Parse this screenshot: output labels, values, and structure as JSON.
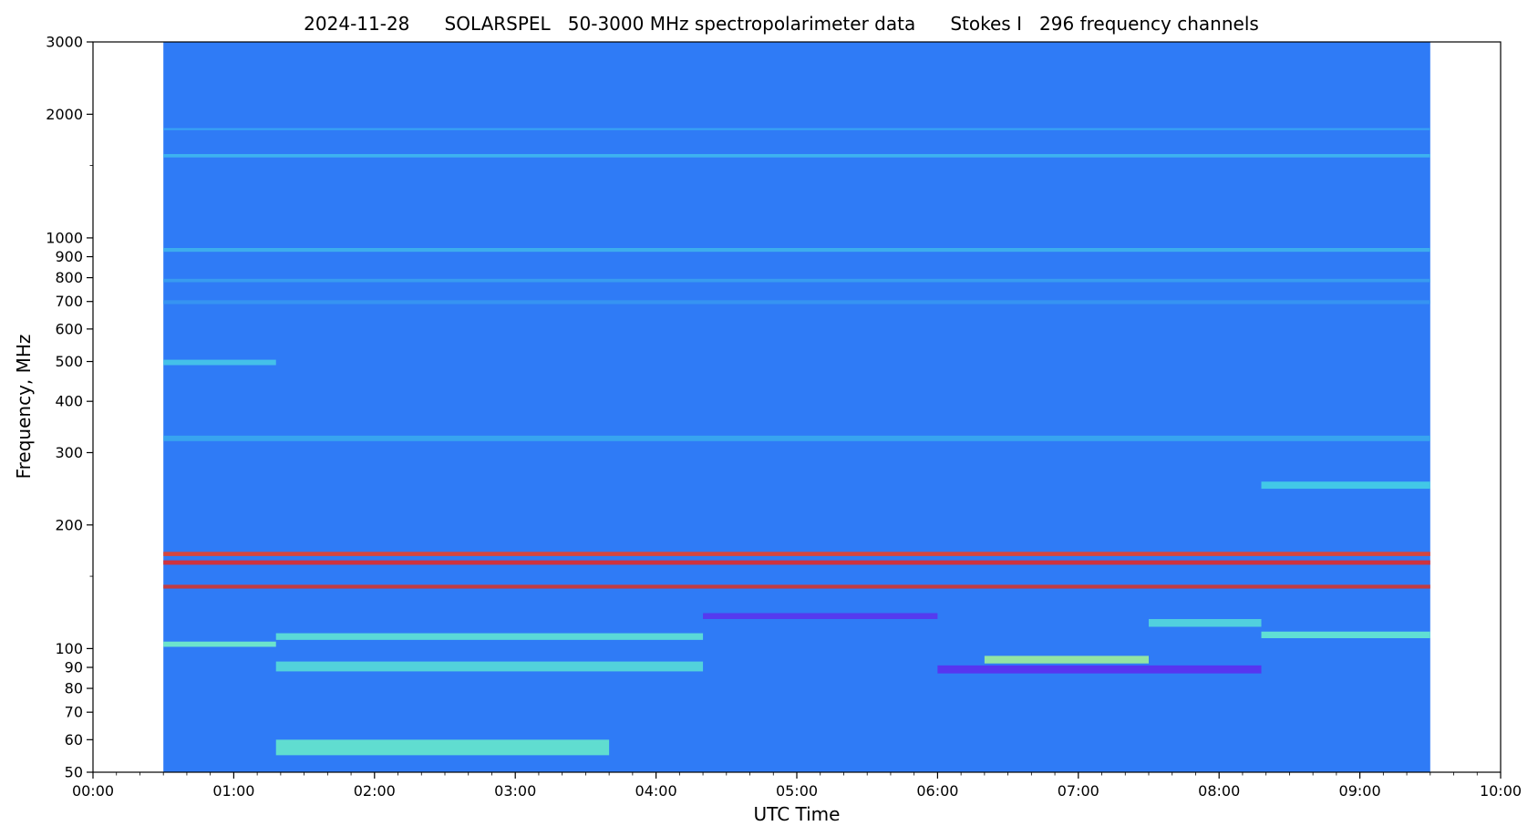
{
  "chart_data": {
    "type": "heatmap",
    "title": "2024-11-28      SOLARSPEL   50-3000 MHz spectropolarimeter data      Stokes I   296 frequency channels",
    "xlabel": "UTC Time",
    "ylabel": "Frequency, MHz",
    "x_scale": "time",
    "y_scale": "log",
    "xlim": [
      "00:00",
      "10:00"
    ],
    "ylim": [
      50,
      3000
    ],
    "x_ticks": [
      "00:00",
      "01:00",
      "02:00",
      "03:00",
      "04:00",
      "05:00",
      "06:00",
      "07:00",
      "08:00",
      "09:00",
      "10:00"
    ],
    "y_ticks": [
      50,
      60,
      70,
      80,
      90,
      100,
      200,
      300,
      400,
      500,
      600,
      700,
      800,
      900,
      1000,
      2000,
      3000
    ],
    "y_tick_labels": [
      "50",
      "60",
      "70",
      "80",
      "90",
      "100",
      "200",
      "300",
      "400",
      "500",
      "600",
      "700",
      "800",
      "900",
      "1000",
      "2000",
      "3000"
    ],
    "data_extent_time": [
      "00:30",
      "09:30"
    ],
    "grid": false,
    "colormap": "rainbow",
    "background_color": "#2f7bf6",
    "features": [
      {
        "kind": "band",
        "freq_mhz": [
          1570,
          1600
        ],
        "time": [
          "00:30",
          "09:30"
        ],
        "color": "#3fb8f0"
      },
      {
        "kind": "band",
        "freq_mhz": [
          1830,
          1850
        ],
        "time": [
          "00:30",
          "09:30"
        ],
        "color": "#3aa7f4"
      },
      {
        "kind": "band",
        "freq_mhz": [
          925,
          945
        ],
        "time": [
          "00:30",
          "09:30"
        ],
        "color": "#3fb2ec"
      },
      {
        "kind": "band",
        "freq_mhz": [
          780,
          795
        ],
        "time": [
          "00:30",
          "09:30"
        ],
        "color": "#3a9ff0"
      },
      {
        "kind": "band",
        "freq_mhz": [
          690,
          705
        ],
        "time": [
          "00:30",
          "09:30"
        ],
        "color": "#3796f2"
      },
      {
        "kind": "band",
        "freq_mhz": [
          490,
          505
        ],
        "time": [
          "00:30",
          "01:18"
        ],
        "color": "#47c9e8"
      },
      {
        "kind": "band",
        "freq_mhz": [
          320,
          330
        ],
        "time": [
          "00:30",
          "09:30"
        ],
        "color": "#3aa8ee"
      },
      {
        "kind": "band",
        "freq_mhz": [
          245,
          255
        ],
        "time": [
          "08:18",
          "09:30"
        ],
        "color": "#45d0e6"
      },
      {
        "kind": "band",
        "freq_mhz": [
          168,
          172
        ],
        "time": [
          "00:30",
          "09:30"
        ],
        "color": "#e8402a"
      },
      {
        "kind": "band",
        "freq_mhz": [
          160,
          164
        ],
        "time": [
          "00:30",
          "09:30"
        ],
        "color": "#e02b2b"
      },
      {
        "kind": "band",
        "freq_mhz": [
          140,
          143
        ],
        "time": [
          "00:30",
          "09:30"
        ],
        "color": "#d3342e"
      },
      {
        "kind": "band",
        "freq_mhz": [
          101,
          104
        ],
        "time": [
          "00:30",
          "01:18"
        ],
        "color": "#73f0c8"
      },
      {
        "kind": "band",
        "freq_mhz": [
          105,
          109
        ],
        "time": [
          "01:18",
          "04:20"
        ],
        "color": "#5fe3d4"
      },
      {
        "kind": "band",
        "freq_mhz": [
          88,
          93
        ],
        "time": [
          "01:18",
          "04:20"
        ],
        "color": "#57dcd8"
      },
      {
        "kind": "band",
        "freq_mhz": [
          55,
          60
        ],
        "time": [
          "01:18",
          "03:40"
        ],
        "color": "#66e8cc"
      },
      {
        "kind": "band",
        "freq_mhz": [
          106,
          110
        ],
        "time": [
          "08:18",
          "09:30"
        ],
        "color": "#66ead0"
      },
      {
        "kind": "band",
        "freq_mhz": [
          113,
          118
        ],
        "time": [
          "07:30",
          "08:18"
        ],
        "color": "#55d9dc"
      },
      {
        "kind": "band",
        "freq_mhz": [
          92,
          96
        ],
        "time": [
          "06:20",
          "07:30"
        ],
        "color": "#9ef09a"
      },
      {
        "kind": "band",
        "freq_mhz": [
          118,
          122
        ],
        "time": [
          "04:20",
          "06:00"
        ],
        "color": "#5a34ee"
      },
      {
        "kind": "band",
        "freq_mhz": [
          87,
          91
        ],
        "time": [
          "06:00",
          "08:18"
        ],
        "color": "#5c2ef0"
      }
    ]
  }
}
